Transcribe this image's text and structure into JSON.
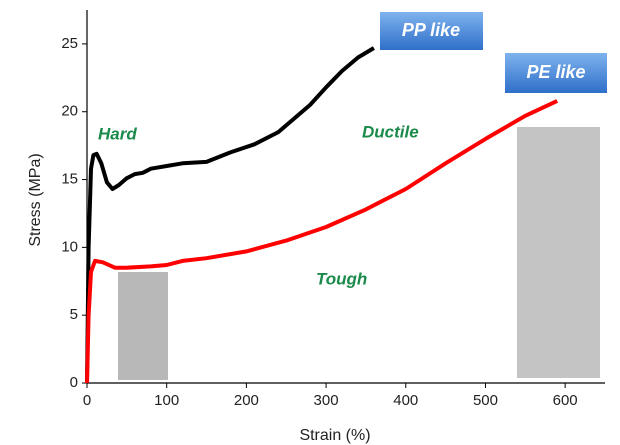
{
  "chart_data": {
    "type": "line",
    "x_label": "Strain (%)",
    "y_label": "Stress (MPa)",
    "xlim": [
      0,
      650
    ],
    "ylim": [
      0,
      27.5
    ],
    "xticks": [
      0,
      100,
      200,
      300,
      400,
      500,
      600
    ],
    "yticks": [
      0,
      5,
      10,
      15,
      20,
      25
    ],
    "series": [
      {
        "name": "PP like",
        "color": "#000000",
        "x": [
          0,
          2,
          5,
          8,
          12,
          18,
          25,
          32,
          40,
          50,
          60,
          70,
          80,
          100,
          120,
          150,
          180,
          210,
          240,
          260,
          280,
          300,
          320,
          340,
          360
        ],
        "values": [
          0,
          10,
          15.8,
          16.8,
          16.9,
          16.2,
          14.8,
          14.3,
          14.6,
          15.1,
          15.4,
          15.5,
          15.8,
          16,
          16.2,
          16.3,
          17,
          17.6,
          18.5,
          19.5,
          20.5,
          21.8,
          23,
          24,
          24.7
        ]
      },
      {
        "name": "PE like",
        "color": "#ff0000",
        "x": [
          0,
          2,
          5,
          10,
          20,
          35,
          50,
          80,
          100,
          120,
          150,
          200,
          250,
          300,
          350,
          400,
          450,
          500,
          550,
          590
        ],
        "values": [
          0,
          5,
          8.2,
          9,
          8.9,
          8.5,
          8.5,
          8.6,
          8.7,
          9,
          9.2,
          9.7,
          10.5,
          11.5,
          12.8,
          14.3,
          16.2,
          18,
          19.7,
          20.8
        ]
      }
    ],
    "annotations": [
      "Hard",
      "Ductile",
      "Tough"
    ]
  }
}
